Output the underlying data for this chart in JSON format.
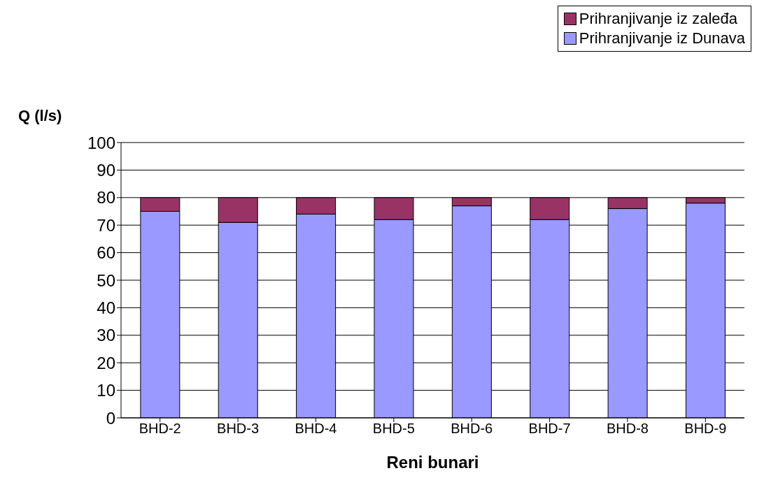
{
  "chart_data": {
    "type": "bar",
    "stacked": true,
    "xlabel": "Reni bunari",
    "ylabel": "Q (l/s)",
    "categories": [
      "BHD-2",
      "BHD-3",
      "BHD-4",
      "BHD-5",
      "BHD-6",
      "BHD-7",
      "BHD-8",
      "BHD-9"
    ],
    "series": [
      {
        "name": "Prihranjivanje iz Dunava",
        "color": "#9999ff",
        "values": [
          75,
          71,
          74,
          72,
          77,
          72,
          76,
          78
        ]
      },
      {
        "name": "Prihranjivanje iz zaleđa",
        "color": "#993366",
        "values": [
          5,
          9,
          6,
          8,
          3,
          8,
          4,
          2
        ]
      }
    ],
    "ylim": [
      0,
      100
    ],
    "yticks": [
      0,
      10,
      20,
      30,
      40,
      50,
      60,
      70,
      80,
      90,
      100
    ],
    "grid": "y",
    "legend": "top right"
  }
}
